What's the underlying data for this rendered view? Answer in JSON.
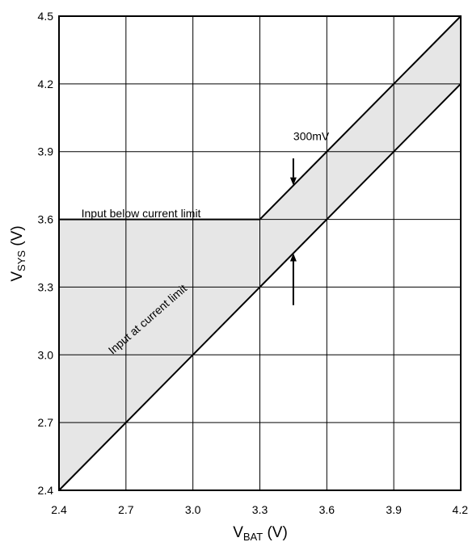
{
  "chart_data": {
    "type": "line",
    "title": "",
    "xlabel": {
      "main": "V",
      "sub": "BAT",
      "unit": " (V)"
    },
    "ylabel": {
      "main": "V",
      "sub": "SYS",
      "unit": " (V)"
    },
    "xlim": [
      2.4,
      4.2
    ],
    "ylim": [
      2.4,
      4.5
    ],
    "x_ticks": [
      2.4,
      2.7,
      3.0,
      3.3,
      3.6,
      3.9,
      4.2
    ],
    "y_ticks": [
      2.4,
      2.7,
      3.0,
      3.3,
      3.6,
      3.9,
      4.2,
      4.5
    ],
    "x_tick_labels": [
      "2.4",
      "2.7",
      "3.0",
      "3.3",
      "3.6",
      "3.9",
      "4.2"
    ],
    "y_tick_labels": [
      "2.4",
      "2.7",
      "3.0",
      "3.3",
      "3.6",
      "3.9",
      "4.2",
      "4.5"
    ],
    "grid": true,
    "series": [
      {
        "name": "Input below current limit",
        "x": [
          2.4,
          3.3,
          4.2
        ],
        "y": [
          3.6,
          3.6,
          4.5
        ]
      },
      {
        "name": "Input at current limit",
        "x": [
          2.4,
          4.2
        ],
        "y": [
          2.4,
          4.2
        ]
      }
    ],
    "shaded_region": {
      "between": [
        0,
        1
      ],
      "color": "#e6e6e6"
    },
    "annotations": [
      {
        "text": "300mV",
        "at": [
          3.45,
          3.95
        ]
      },
      {
        "text": "Input below current limit",
        "at": [
          2.5,
          3.61
        ]
      },
      {
        "text": "Input at current limit",
        "at": [
          2.64,
          3.0
        ],
        "rotation_deg": -41
      }
    ],
    "arrows": [
      {
        "from": [
          3.45,
          3.87
        ],
        "to": [
          3.45,
          3.75
        ]
      },
      {
        "from": [
          3.45,
          3.22
        ],
        "to": [
          3.45,
          3.45
        ]
      }
    ]
  }
}
